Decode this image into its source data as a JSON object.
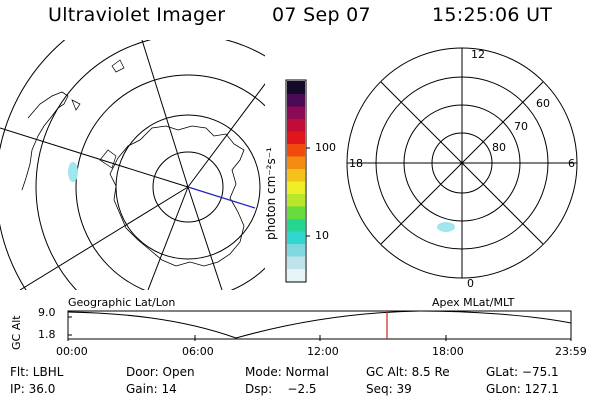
{
  "header": {
    "title": "Ultraviolet Imager",
    "date": "07 Sep 07",
    "time": "15:25:06 UT"
  },
  "colorbar": {
    "unit_label": "photon cm⁻²s⁻¹",
    "tick_100": "100",
    "tick_10": "10",
    "colors": [
      "#e6f4f7",
      "#bfe3ea",
      "#7fd8e0",
      "#2fd7cf",
      "#25d690",
      "#66dd3c",
      "#b8e62a",
      "#eeee26",
      "#f5c21c",
      "#f58c12",
      "#f04a0c",
      "#e0161a",
      "#c00c36",
      "#8a0a55",
      "#4a0a55",
      "#140a2a"
    ]
  },
  "geo_map": {
    "label": "Geographic Lat/Lon",
    "blob_color": "#9fe6ee"
  },
  "mlt_map": {
    "label": "Apex MLat/MLT",
    "mlt_12": "12",
    "mlt_18": "18",
    "mlt_6": "6",
    "mlt_0": "0",
    "lat_60": "60",
    "lat_70": "70",
    "lat_80": "80",
    "blob_color": "#9fe6ee"
  },
  "altitude_plot": {
    "ylabel": "GC Alt",
    "ytick_top": "9.0",
    "ytick_bottom": "1.8",
    "xticks": [
      "00:00",
      "06:00",
      "12:00",
      "18:00",
      "23:59"
    ],
    "current_time_marker_color": "#cc2222"
  },
  "status": {
    "filter": "Flt: LBHL",
    "door": "Door: Open",
    "mode": "Mode: Normal",
    "gc_alt": "GC Alt: 8.5 Re",
    "glat": "GLat: −75.1",
    "ip": "IP: 36.0",
    "gain": "Gain: 14",
    "dsp": "Dsp:    −2.5",
    "seq": "Seq: 39",
    "glon": "GLon: 127.1"
  }
}
